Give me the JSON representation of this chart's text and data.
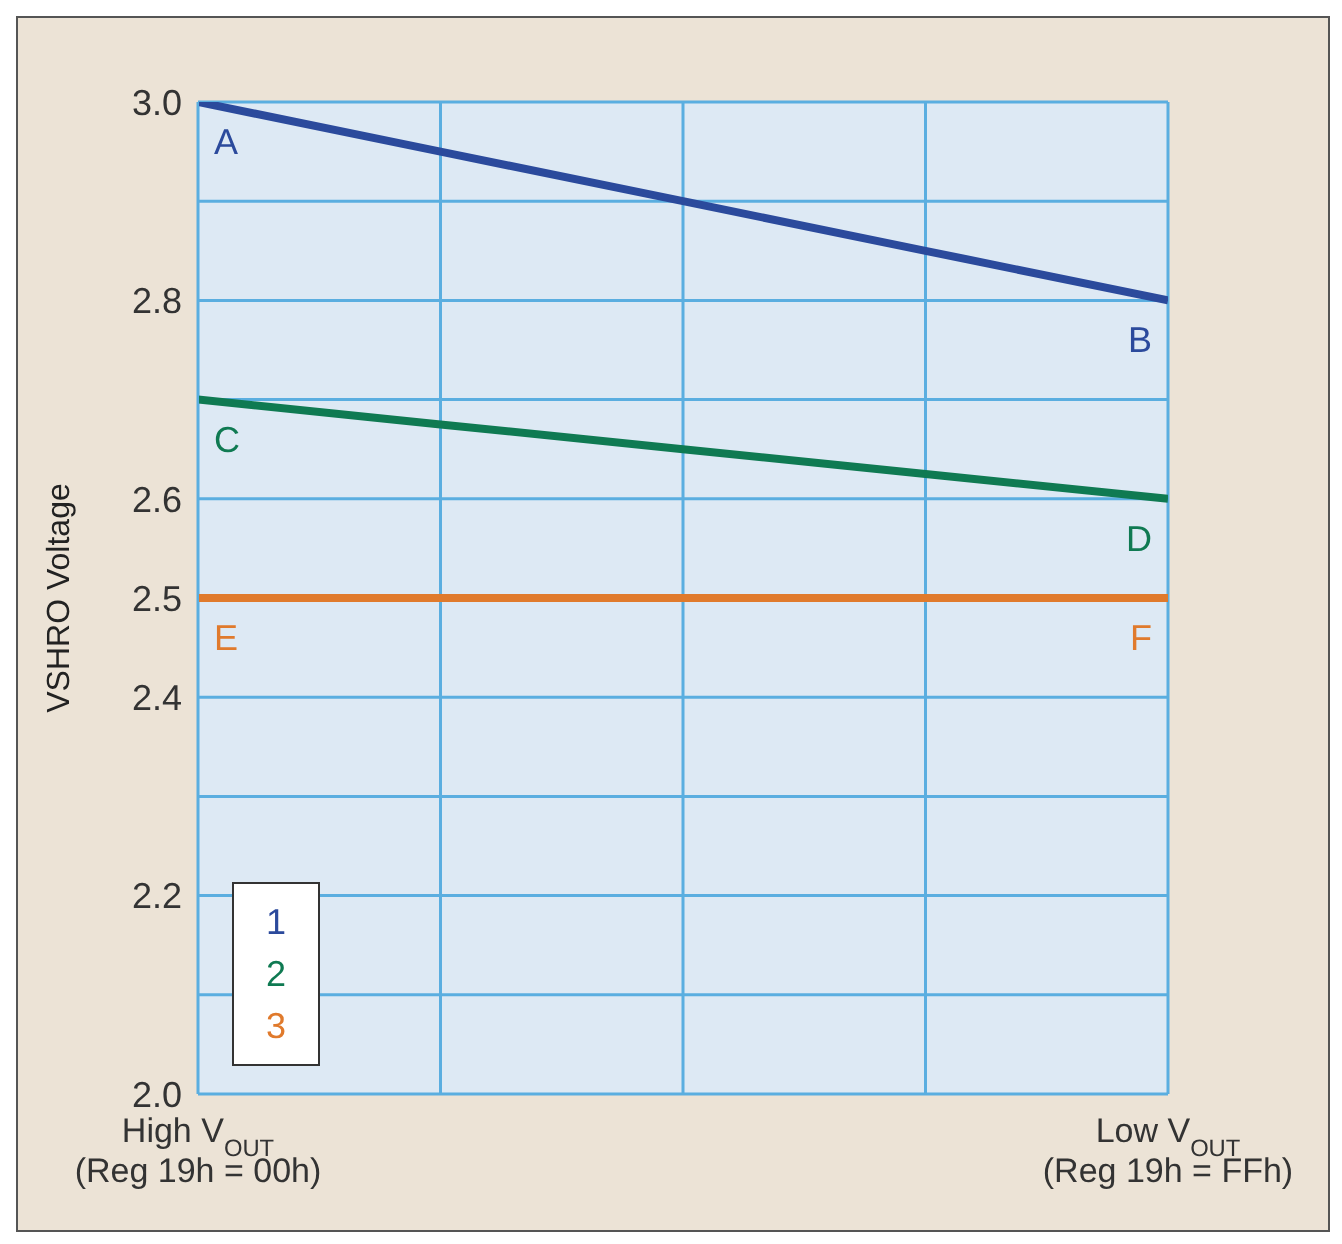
{
  "chart_data": {
    "type": "line",
    "ylabel": "VSHRO Voltage",
    "categories": [
      "High V$_{OUT}$\n(Reg 19h = 00h)",
      null,
      null,
      null,
      "Low V$_{OUT}$\n(Reg 19h = FFh)"
    ],
    "series": [
      {
        "name": "1",
        "color": "#2b4a9c",
        "values": [
          3.0,
          2.95,
          2.9,
          2.85,
          2.8
        ]
      },
      {
        "name": "2",
        "color": "#0f7a52",
        "values": [
          2.7,
          2.675,
          2.65,
          2.625,
          2.6
        ]
      },
      {
        "name": "3",
        "color": "#e07a2c",
        "values": [
          2.5,
          2.5,
          2.5,
          2.5,
          2.5
        ]
      }
    ],
    "ylim": [
      2.0,
      3.0
    ],
    "yticks": [
      {
        "value": 2.0,
        "label": "2.0"
      },
      {
        "value": 2.1,
        "label": null
      },
      2.2,
      {
        "value": 2.3,
        "label": null
      },
      2.4,
      2.5,
      2.6,
      {
        "value": 2.7,
        "label": null
      },
      2.8,
      {
        "value": 2.9,
        "label": null
      },
      {
        "value": 3.0,
        "label": "3.0"
      }
    ],
    "annotations": [
      {
        "text": "A",
        "x": "High V$_{OUT}$\n(Reg 19h = 00h)",
        "y": 3.0
      },
      {
        "text": "B",
        "x": "Low V$_{OUT}$\n(Reg 19h = FFh)",
        "y": 2.8
      },
      {
        "text": "C",
        "x": "High V$_{OUT}$\n(Reg 19h = 00h)",
        "y": 2.7
      },
      {
        "text": "D",
        "x": "Low V$_{OUT}$\n(Reg 19h = FFh)",
        "y": 2.6
      },
      {
        "text": "E",
        "x": "High V$_{OUT}$\n(Reg 19h = 00h)",
        "y": 2.5
      },
      {
        "text": "F",
        "x": "Low V$_{OUT}$\n(Reg 19h = FFh)",
        "y": 2.5
      }
    ],
    "grid": true,
    "legend": "bottom left",
    "marker": "none",
    "line_style": "solid"
  }
}
